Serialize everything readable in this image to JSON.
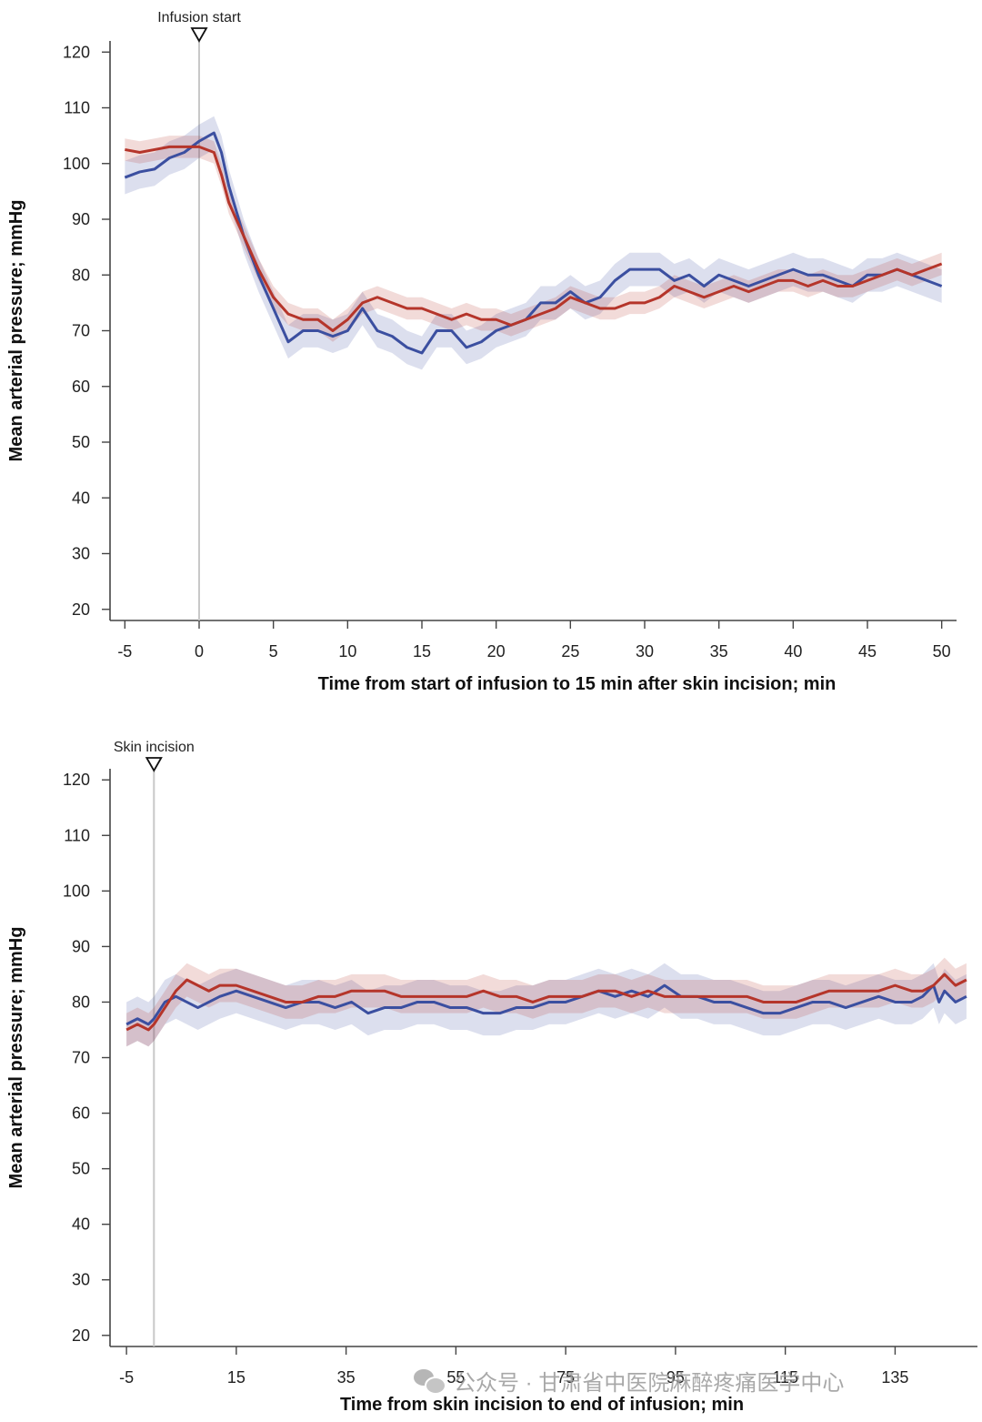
{
  "colors": {
    "blue": "#3b4fa0",
    "red": "#b5352a",
    "axis": "#444444",
    "marker": "#c8c8c8"
  },
  "watermark": {
    "text": "公众号 · 甘肃省中医院麻醉疼痛医学中心",
    "icon": "wechat-icon"
  },
  "chart_data": [
    {
      "type": "line",
      "title": "",
      "xlabel": "Time from start of infusion to 15 min after skin incision; min",
      "ylabel": "Mean arterial pressure; mmHg",
      "xlim": [
        -6,
        51
      ],
      "ylim": [
        18,
        122
      ],
      "xticks": [
        -5,
        0,
        5,
        10,
        15,
        20,
        25,
        30,
        35,
        40,
        45,
        50
      ],
      "xtick_labels": [
        "-5",
        "0",
        "5",
        "10",
        "15",
        "20",
        "25",
        "30",
        "35",
        "40",
        "45",
        "50"
      ],
      "yticks": [
        20,
        30,
        40,
        50,
        60,
        70,
        80,
        90,
        100,
        110,
        120
      ],
      "ytick_labels": [
        "20",
        "30",
        "40",
        "50",
        "60",
        "70",
        "80",
        "90",
        "100",
        "110",
        "120"
      ],
      "marker": {
        "label": "Infusion start",
        "x": 0
      },
      "series": [
        {
          "name": "blue",
          "color": "#3b4fa0",
          "ci": 3,
          "x": [
            -5,
            -4,
            -3,
            -2,
            -1,
            0,
            1,
            1.5,
            2,
            3,
            4,
            5,
            6,
            7,
            8,
            9,
            10,
            11,
            12,
            13,
            14,
            15,
            16,
            17,
            18,
            19,
            20,
            21,
            22,
            23,
            24,
            25,
            26,
            27,
            28,
            29,
            30,
            31,
            32,
            33,
            34,
            35,
            36,
            37,
            38,
            39,
            40,
            41,
            42,
            43,
            44,
            45,
            46,
            47,
            48,
            49,
            50
          ],
          "values": [
            97.5,
            98.5,
            99,
            101,
            102,
            104,
            105.5,
            102,
            96,
            87,
            80,
            74,
            68,
            70,
            70,
            69,
            70,
            74,
            70,
            69,
            67,
            66,
            70,
            70,
            67,
            68,
            70,
            71,
            72,
            75,
            75,
            77,
            75,
            76,
            79,
            81,
            81,
            81,
            79,
            80,
            78,
            80,
            79,
            78,
            79,
            80,
            81,
            80,
            80,
            79,
            78,
            80,
            80,
            81,
            80,
            79,
            78
          ]
        },
        {
          "name": "red",
          "color": "#b5352a",
          "ci": 2,
          "x": [
            -5,
            -4,
            -3,
            -2,
            -1,
            0,
            1,
            1.5,
            2,
            3,
            4,
            5,
            6,
            7,
            8,
            9,
            10,
            11,
            12,
            13,
            14,
            15,
            16,
            17,
            18,
            19,
            20,
            21,
            22,
            23,
            24,
            25,
            26,
            27,
            28,
            29,
            30,
            31,
            32,
            33,
            34,
            35,
            36,
            37,
            38,
            39,
            40,
            41,
            42,
            43,
            44,
            45,
            46,
            47,
            48,
            49,
            50
          ],
          "values": [
            102.5,
            102,
            102.5,
            103,
            103,
            103,
            102,
            98,
            93,
            87,
            81,
            76,
            73,
            72,
            72,
            70,
            72,
            75,
            76,
            75,
            74,
            74,
            73,
            72,
            73,
            72,
            72,
            71,
            72,
            73,
            74,
            76,
            75,
            74,
            74,
            75,
            75,
            76,
            78,
            77,
            76,
            77,
            78,
            77,
            78,
            79,
            79,
            78,
            79,
            78,
            78,
            79,
            80,
            81,
            80,
            81,
            82
          ]
        }
      ]
    },
    {
      "type": "line",
      "title": "",
      "xlabel": "Time from skin incision to end of infusion; min",
      "ylabel": "Mean arterial pressure; mmHg",
      "xlim": [
        -8,
        150
      ],
      "ylim": [
        18,
        122
      ],
      "xticks": [
        -5,
        15,
        35,
        55,
        75,
        95,
        115,
        135
      ],
      "xtick_labels": [
        "-5",
        "15",
        "35",
        "55",
        "75",
        "95",
        "115",
        "135"
      ],
      "yticks": [
        20,
        30,
        40,
        50,
        60,
        70,
        80,
        90,
        100,
        110,
        120
      ],
      "ytick_labels": [
        "20",
        "30",
        "40",
        "50",
        "60",
        "70",
        "80",
        "90",
        "100",
        "110",
        "120"
      ],
      "marker": {
        "label": "Skin incision",
        "x": 0
      },
      "series": [
        {
          "name": "blue",
          "color": "#3b4fa0",
          "ci": 4,
          "x": [
            -5,
            -3,
            -1,
            0,
            2,
            4,
            6,
            8,
            10,
            12,
            15,
            18,
            21,
            24,
            27,
            30,
            33,
            36,
            39,
            42,
            45,
            48,
            51,
            54,
            57,
            60,
            63,
            66,
            69,
            72,
            75,
            78,
            81,
            84,
            87,
            90,
            93,
            96,
            99,
            102,
            105,
            108,
            111,
            114,
            117,
            120,
            123,
            126,
            129,
            132,
            135,
            138,
            140,
            142,
            143,
            144,
            146,
            148
          ],
          "values": [
            76,
            77,
            76,
            77,
            80,
            81,
            80,
            79,
            80,
            81,
            82,
            81,
            80,
            79,
            80,
            80,
            79,
            80,
            78,
            79,
            79,
            80,
            80,
            79,
            79,
            78,
            78,
            79,
            79,
            80,
            80,
            81,
            82,
            81,
            82,
            81,
            83,
            81,
            81,
            80,
            80,
            79,
            78,
            78,
            79,
            80,
            80,
            79,
            80,
            81,
            80,
            80,
            81,
            83,
            80,
            82,
            80,
            81
          ]
        },
        {
          "name": "red",
          "color": "#b5352a",
          "ci": 3,
          "x": [
            -5,
            -3,
            -1,
            0,
            2,
            4,
            6,
            8,
            10,
            12,
            15,
            18,
            21,
            24,
            27,
            30,
            33,
            36,
            39,
            42,
            45,
            48,
            51,
            54,
            57,
            60,
            63,
            66,
            69,
            72,
            75,
            78,
            81,
            84,
            87,
            90,
            93,
            96,
            99,
            102,
            105,
            108,
            111,
            114,
            117,
            120,
            123,
            126,
            129,
            132,
            135,
            138,
            140,
            142,
            143,
            144,
            146,
            148
          ],
          "values": [
            75,
            76,
            75,
            76,
            79,
            82,
            84,
            83,
            82,
            83,
            83,
            82,
            81,
            80,
            80,
            81,
            81,
            82,
            82,
            82,
            81,
            81,
            81,
            81,
            81,
            82,
            81,
            81,
            80,
            81,
            81,
            81,
            82,
            82,
            81,
            82,
            81,
            81,
            81,
            81,
            81,
            81,
            80,
            80,
            80,
            81,
            82,
            82,
            82,
            82,
            83,
            82,
            82,
            83,
            84,
            85,
            83,
            84
          ]
        }
      ]
    }
  ]
}
